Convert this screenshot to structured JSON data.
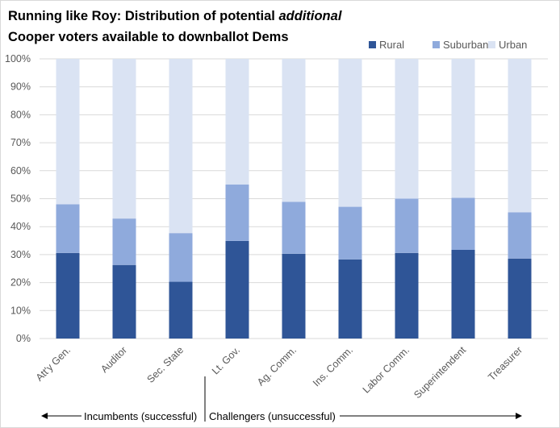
{
  "chart_data": {
    "type": "bar",
    "stacked": true,
    "title_part1": "Running like Roy: Distribution of potential ",
    "title_italic": "additional",
    "title_line2": "Cooper voters available to downballot Dems",
    "categories": [
      "Att'y Gen.",
      "Auditor",
      "Sec. State",
      "Lt. Gov.",
      "Ag. Comm.",
      "Ins. Comm.",
      "Labor Comm.",
      "Superintendent",
      "Treasurer"
    ],
    "series": [
      {
        "name": "Rural",
        "color": "#2f5597",
        "values": [
          30.6,
          26.3,
          20.3,
          34.9,
          30.3,
          28.3,
          30.6,
          31.7,
          28.6
        ]
      },
      {
        "name": "Suburban",
        "color": "#8faadc",
        "values": [
          17.4,
          16.6,
          17.4,
          20.2,
          18.6,
          18.8,
          19.4,
          18.6,
          16.5
        ]
      },
      {
        "name": "Urban",
        "color": "#dae3f3",
        "values": [
          52.0,
          57.1,
          62.3,
          44.9,
          51.1,
          52.9,
          50.0,
          49.7,
          54.9
        ]
      }
    ],
    "ylim": [
      0,
      100
    ],
    "yticks": [
      "0%",
      "10%",
      "20%",
      "30%",
      "40%",
      "50%",
      "60%",
      "70%",
      "80%",
      "90%",
      "100%"
    ],
    "grid": true,
    "legend_position": "top-right",
    "annotations": {
      "left": "Incumbents (successful)",
      "right": "Challengers (unsuccessful)"
    }
  }
}
